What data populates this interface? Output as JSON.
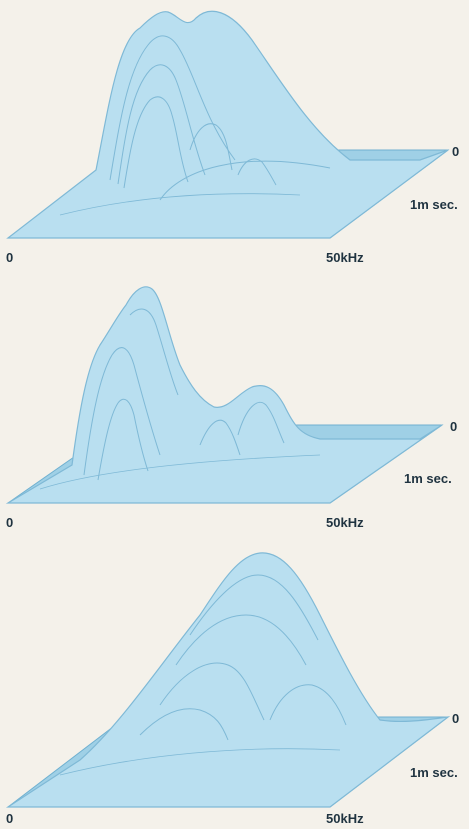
{
  "chart_data": [
    {
      "type": "waterfall-3d",
      "x_axis": {
        "start_label": "0",
        "end_label": "50kHz",
        "range": [
          0,
          50
        ],
        "unit": "kHz"
      },
      "time_axis": {
        "start_label": "0",
        "end_label": "1m sec.",
        "range": [
          0,
          1
        ],
        "unit": "ms"
      },
      "grid": false,
      "color": "#8fc7e0"
    },
    {
      "type": "waterfall-3d",
      "x_axis": {
        "start_label": "0",
        "end_label": "50kHz",
        "range": [
          0,
          50
        ],
        "unit": "kHz"
      },
      "time_axis": {
        "start_label": "0",
        "end_label": "1m sec.",
        "range": [
          0,
          1
        ],
        "unit": "ms"
      },
      "grid": false,
      "color": "#8fc7e0"
    },
    {
      "type": "waterfall-3d",
      "x_axis": {
        "start_label": "0",
        "end_label": "50kHz",
        "range": [
          0,
          50
        ],
        "unit": "kHz"
      },
      "time_axis": {
        "start_label": "0",
        "end_label": "1m sec.",
        "range": [
          0,
          1
        ],
        "unit": "ms"
      },
      "grid": false,
      "color": "#8fc7e0"
    }
  ]
}
